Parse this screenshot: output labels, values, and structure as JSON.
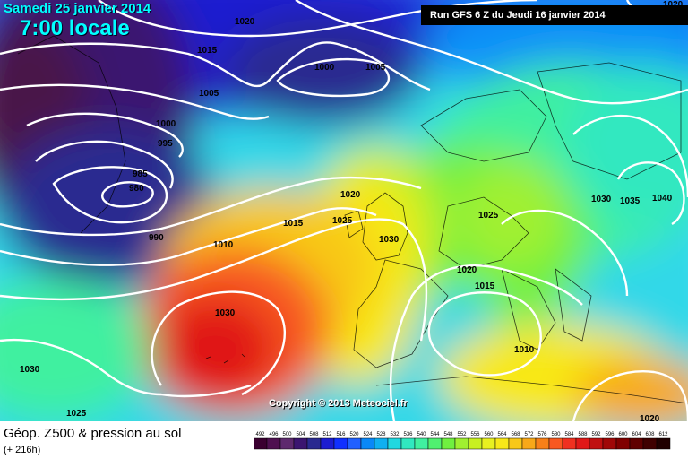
{
  "header": {
    "date": "Samedi 25 janvier 2014",
    "time": "7:00 locale",
    "run": "Run GFS 6 Z du Jeudi 16 janvier 2014"
  },
  "copyright": "Copyright © 2013 Meteociel.fr",
  "footer": {
    "title": "Géop. Z500 & pression au sol",
    "subtitle": "(+ 216h)"
  },
  "isobar_labels": [
    "1020",
    "1015",
    "1000",
    "1005",
    "1005",
    "1000",
    "995",
    "985",
    "980",
    "990",
    "1010",
    "1015",
    "1020",
    "1025",
    "1030",
    "1030",
    "1030",
    "1025",
    "1020",
    "1015",
    "1010",
    "1030",
    "1035",
    "1040",
    "1025",
    "1020",
    "1020"
  ],
  "legend": {
    "values": [
      "492",
      "496",
      "500",
      "504",
      "508",
      "512",
      "516",
      "520",
      "524",
      "528",
      "532",
      "536",
      "540",
      "544",
      "548",
      "552",
      "556",
      "560",
      "564",
      "568",
      "572",
      "576",
      "580",
      "584",
      "588",
      "592",
      "596",
      "600",
      "604",
      "608",
      "612"
    ],
    "colors": [
      "#3a0030",
      "#4f1050",
      "#5e2a6e",
      "#3b1570",
      "#2a2a90",
      "#1c1cd0",
      "#1030ff",
      "#2060ff",
      "#0a88f8",
      "#10b0f0",
      "#20d8e0",
      "#30e8c0",
      "#40f0a0",
      "#50f070",
      "#70f040",
      "#a0f030",
      "#c8f020",
      "#e8f020",
      "#f8e818",
      "#f8c818",
      "#f8a818",
      "#f88018",
      "#f85820",
      "#f03020",
      "#e01818",
      "#c01010",
      "#a00808",
      "#800000",
      "#600000",
      "#400000",
      "#200000"
    ]
  }
}
